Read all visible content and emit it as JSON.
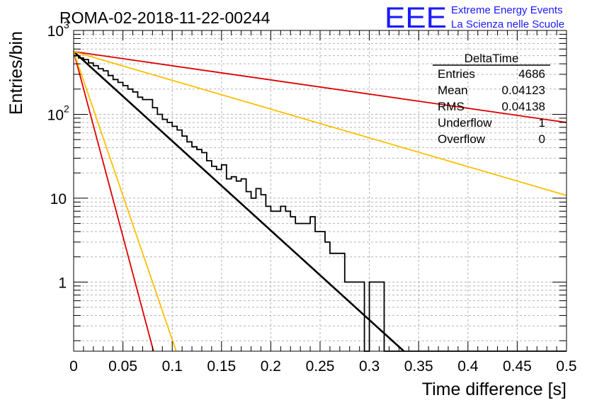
{
  "header": {
    "run_title": "ROMA-02-2018-11-22-00244",
    "logo_text": "EEE",
    "logo_line1": "Extreme Energy Events",
    "logo_line2": "La Scienza nelle Scuole"
  },
  "stats_box": {
    "title": "DeltaTime",
    "rows": [
      {
        "label": "Entries",
        "value": "4686"
      },
      {
        "label": "Mean",
        "value": "0.04123"
      },
      {
        "label": "RMS",
        "value": "0.04138"
      },
      {
        "label": "Underflow",
        "value": "1"
      },
      {
        "label": "Overflow",
        "value": "0"
      }
    ]
  },
  "colors": {
    "histogram": "#000000",
    "fit_line": "#000000",
    "red_line": "#dd0000",
    "orange_line": "#ffbf00",
    "logo": "#1a1aff",
    "grid": "#b4b4b4"
  },
  "chart_data": {
    "type": "histogram",
    "xlabel": "Time difference [s]",
    "ylabel": "Entries/bin",
    "xlim": [
      0,
      0.5
    ],
    "ylim": [
      0.15,
      1000
    ],
    "yscale": "log",
    "grid": true,
    "x_ticks": [
      "0",
      "0.05",
      "0.1",
      "0.15",
      "0.2",
      "0.25",
      "0.3",
      "0.35",
      "0.4",
      "0.45",
      "0.5"
    ],
    "y_ticks": [
      {
        "value": 1,
        "label": "1"
      },
      {
        "value": 10,
        "label": "10"
      },
      {
        "value": 100,
        "label": "10",
        "exp": "2"
      },
      {
        "value": 1000,
        "label": "10",
        "exp": "3"
      }
    ],
    "bin_width": 0.005,
    "histogram_values": [
      500,
      470,
      450,
      410,
      380,
      350,
      330,
      290,
      260,
      240,
      220,
      200,
      185,
      160,
      150,
      150,
      120,
      100,
      87,
      80,
      72,
      65,
      55,
      47,
      41,
      38,
      35,
      28,
      24,
      22,
      25,
      17,
      18,
      16,
      17,
      12,
      10,
      13,
      11,
      8,
      7,
      7,
      8,
      7,
      6,
      5,
      5,
      5,
      6,
      4,
      4,
      3,
      2.2,
      2.2,
      2.2,
      1,
      1,
      1,
      1,
      0,
      1,
      1,
      1,
      0,
      0,
      0,
      0,
      0,
      0,
      0,
      0,
      0,
      0,
      0,
      0,
      0,
      0,
      0,
      0,
      0,
      0,
      0,
      0,
      0,
      0,
      0,
      0,
      0,
      0,
      0,
      0,
      0,
      0,
      0,
      0,
      0,
      0,
      0,
      0,
      0
    ],
    "lines": [
      {
        "role": "fit",
        "color": "black",
        "points": [
          [
            0,
            560
          ],
          [
            0.335,
            0.15
          ]
        ]
      },
      {
        "role": "upper-red",
        "color": "red",
        "points": [
          [
            0,
            560
          ],
          [
            0.5,
            80
          ]
        ]
      },
      {
        "role": "upper-orange",
        "color": "orange",
        "points": [
          [
            0,
            560
          ],
          [
            0.5,
            10.8
          ]
        ]
      },
      {
        "role": "lower-red",
        "color": "red",
        "points": [
          [
            0,
            560
          ],
          [
            0.081,
            0.15
          ]
        ]
      },
      {
        "role": "lower-orange",
        "color": "orange",
        "points": [
          [
            0,
            560
          ],
          [
            0.104,
            0.15
          ]
        ]
      }
    ]
  }
}
